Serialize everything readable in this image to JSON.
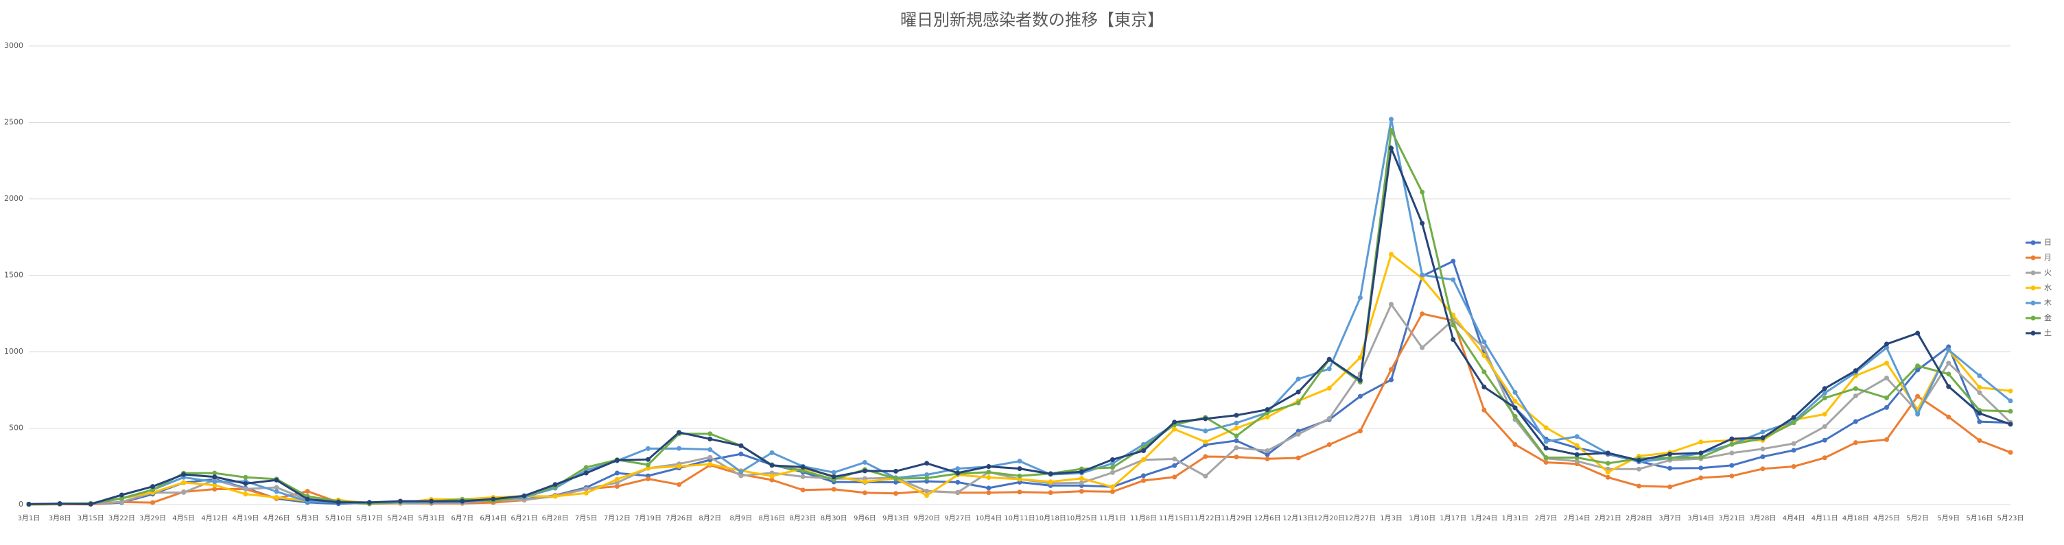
{
  "chart_data": {
    "type": "line",
    "title": "曜日別新規感染者数の推移【東京】",
    "categories": [
      "3月1日",
      "3月8日",
      "3月15日",
      "3月22日",
      "3月29日",
      "4月5日",
      "4月12日",
      "4月19日",
      "4月26日",
      "5月3日",
      "5月10日",
      "5月17日",
      "5月24日",
      "5月31日",
      "6月7日",
      "6月14日",
      "6月21日",
      "6月28日",
      "7月5日",
      "7月12日",
      "7月19日",
      "7月26日",
      "8月2日",
      "8月9日",
      "8月16日",
      "8月23日",
      "8月30日",
      "9月6日",
      "9月13日",
      "9月20日",
      "9月27日",
      "10月4日",
      "10月11日",
      "10月18日",
      "10月25日",
      "11月1日",
      "11月8日",
      "11月15日",
      "11月22日",
      "11月29日",
      "12月6日",
      "12月13日",
      "12月20日",
      "12月27日",
      "1月3日",
      "1月10日",
      "1月17日",
      "1月24日",
      "1月31日",
      "2月7日",
      "2月14日",
      "2月21日",
      "2月28日",
      "3月7日",
      "3月14日",
      "3月21日",
      "3月28日",
      "4月4日",
      "4月11日",
      "4月18日",
      "4月25日",
      "5月2日",
      "5月9日",
      "5月16日",
      "5月23日"
    ],
    "series": [
      {
        "name": "日",
        "color": "#4472c4",
        "values": [
          0,
          3,
          2,
          13,
          68,
          143,
          166,
          107,
          39,
          14,
          5,
          14,
          14,
          14,
          13,
          35,
          35,
          60,
          111,
          206,
          188,
          239,
          292,
          331,
          260,
          212,
          148,
          146,
          146,
          152,
          146,
          108,
          146,
          124,
          124,
          116,
          189,
          255,
          391,
          418,
          327,
          480,
          556,
          708,
          816,
          1494,
          1592,
          986,
          633,
          429,
          371,
          329,
          282,
          237,
          239,
          256,
          313,
          355,
          421,
          543,
          635,
          880,
          1032,
          542,
          535
        ]
      },
      {
        "name": "月",
        "color": "#ed7d31",
        "values": [
          0,
          2,
          2,
          16,
          13,
          83,
          101,
          101,
          39,
          87,
          15,
          5,
          8,
          8,
          8,
          13,
          29,
          58,
          102,
          119,
          168,
          131,
          258,
          197,
          161,
          95,
          100,
          77,
          73,
          88,
          78,
          78,
          82,
          78,
          87,
          84,
          157,
          180,
          314,
          311,
          299,
          305,
          392,
          481,
          884,
          1248,
          1204,
          618,
          393,
          276,
          266,
          178,
          121,
          116,
          175,
          187,
          234,
          249,
          306,
          405,
          425,
          708,
          573,
          419,
          341
        ]
      },
      {
        "name": "火",
        "color": "#a5a5a5",
        "values": [
          1,
          5,
          8,
          17,
          78,
          79,
          161,
          102,
          112,
          31,
          28,
          10,
          8,
          12,
          12,
          27,
          31,
          54,
          102,
          143,
          237,
          266,
          309,
          188,
          207,
          182,
          170,
          170,
          176,
          88,
          80,
          212,
          166,
          139,
          142,
          209,
          293,
          298,
          186,
          372,
          352,
          460,
          563,
          856,
          1310,
          1026,
          1208,
          1026,
          556,
          302,
          284,
          232,
          232,
          290,
          300,
          337,
          364,
          399,
          510,
          711,
          828,
          607,
          925,
          732,
          537
        ]
      },
      {
        "name": "水",
        "color": "#ffc000",
        "values": [
          1,
          2,
          7,
          41,
          78,
          144,
          127,
          68,
          47,
          23,
          30,
          7,
          10,
          34,
          34,
          47,
          55,
          54,
          75,
          165,
          238,
          250,
          264,
          222,
          186,
          236,
          186,
          149,
          171,
          59,
          194,
          177,
          166,
          149,
          171,
          115,
          293,
          493,
          410,
          500,
          572,
          678,
          761,
          962,
          1637,
          1480,
          1240,
          975,
          676,
          503,
          387,
          212,
          316,
          340,
          409,
          420,
          420,
          554,
          591,
          843,
          925,
          621,
          1010,
          766,
          743
        ]
      },
      {
        "name": "木",
        "color": "#5b9bd5",
        "values": [
          2,
          4,
          5,
          40,
          97,
          178,
          149,
          152,
          85,
          21,
          15,
          5,
          15,
          15,
          18,
          29,
          48,
          107,
          224,
          286,
          366,
          367,
          360,
          215,
          339,
          250,
          210,
          276,
          174,
          195,
          235,
          248,
          284,
          197,
          206,
          269,
          393,
          525,
          481,
          533,
          602,
          821,
          888,
          1353,
          2520,
          1502,
          1471,
          1064,
          734,
          412,
          445,
          335,
          279,
          303,
          335,
          394,
          475,
          545,
          729,
          864,
          1026,
          591,
          1011,
          843,
          678
        ]
      },
      {
        "name": "金",
        "color": "#70ad47",
        "values": [
          1,
          6,
          8,
          41,
          97,
          205,
          206,
          178,
          167,
          54,
          22,
          5,
          22,
          20,
          34,
          24,
          54,
          119,
          243,
          293,
          260,
          463,
          463,
          385,
          259,
          222,
          164,
          229,
          170,
          173,
          202,
          212,
          187,
          203,
          233,
          242,
          374,
          522,
          570,
          449,
          602,
          664,
          949,
          801,
          2447,
          2044,
          1175,
          868,
          577,
          307,
          307,
          270,
          301,
          306,
          309,
          394,
          432,
          535,
          697,
          759,
          698,
          907,
          854,
          616,
          610
        ]
      },
      {
        "name": "土",
        "color": "#264478",
        "values": [
          3,
          6,
          3,
          63,
          118,
          197,
          181,
          137,
          160,
          36,
          15,
          14,
          22,
          22,
          22,
          36,
          57,
          131,
          206,
          290,
          295,
          472,
          429,
          385,
          256,
          245,
          181,
          220,
          218,
          270,
          207,
          249,
          235,
          201,
          215,
          294,
          352,
          539,
          561,
          584,
          621,
          736,
          950,
          814,
          2331,
          1840,
          1079,
          769,
          633,
          369,
          327,
          337,
          289,
          330,
          337,
          430,
          437,
          570,
          759,
          876,
          1050,
          1121,
          772,
          597,
          525
        ]
      }
    ],
    "ylim": [
      0,
      3000
    ],
    "yticks": [
      0,
      500,
      1000,
      1500,
      2000,
      2500,
      3000
    ],
    "grid": true,
    "legend": "right"
  }
}
